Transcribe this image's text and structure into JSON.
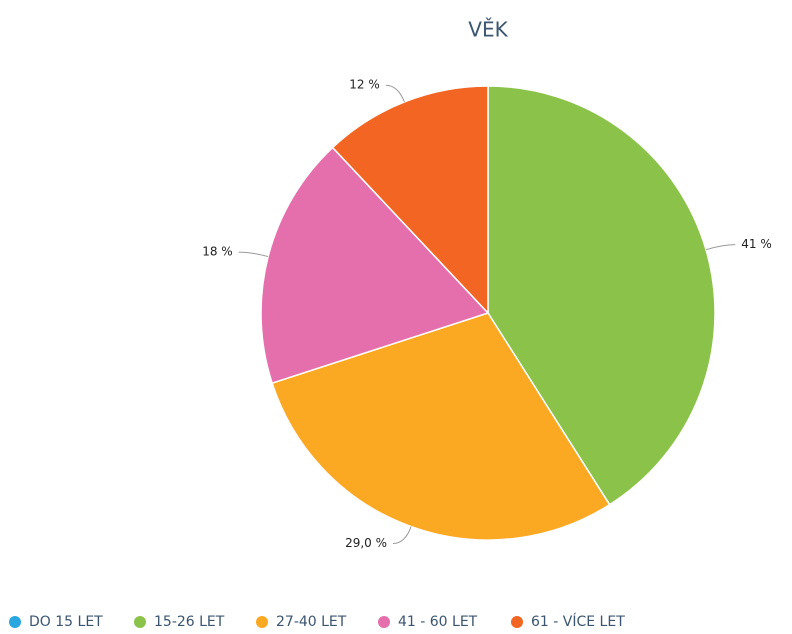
{
  "chart_data": {
    "type": "pie",
    "title": "VĚK",
    "categories": [
      "DO 15 LET",
      "15-26 LET",
      "27-40 LET",
      "41 - 60 LET",
      "61 - VÍCE LET"
    ],
    "values": [
      0,
      41,
      29.0,
      18,
      12
    ],
    "value_labels": [
      null,
      "41 %",
      "29,0 %",
      "18 %",
      "12 %"
    ],
    "colors": [
      "#2ba7df",
      "#8bc34a",
      "#fba823",
      "#e56fad",
      "#f26522"
    ],
    "legend": "bottom"
  }
}
